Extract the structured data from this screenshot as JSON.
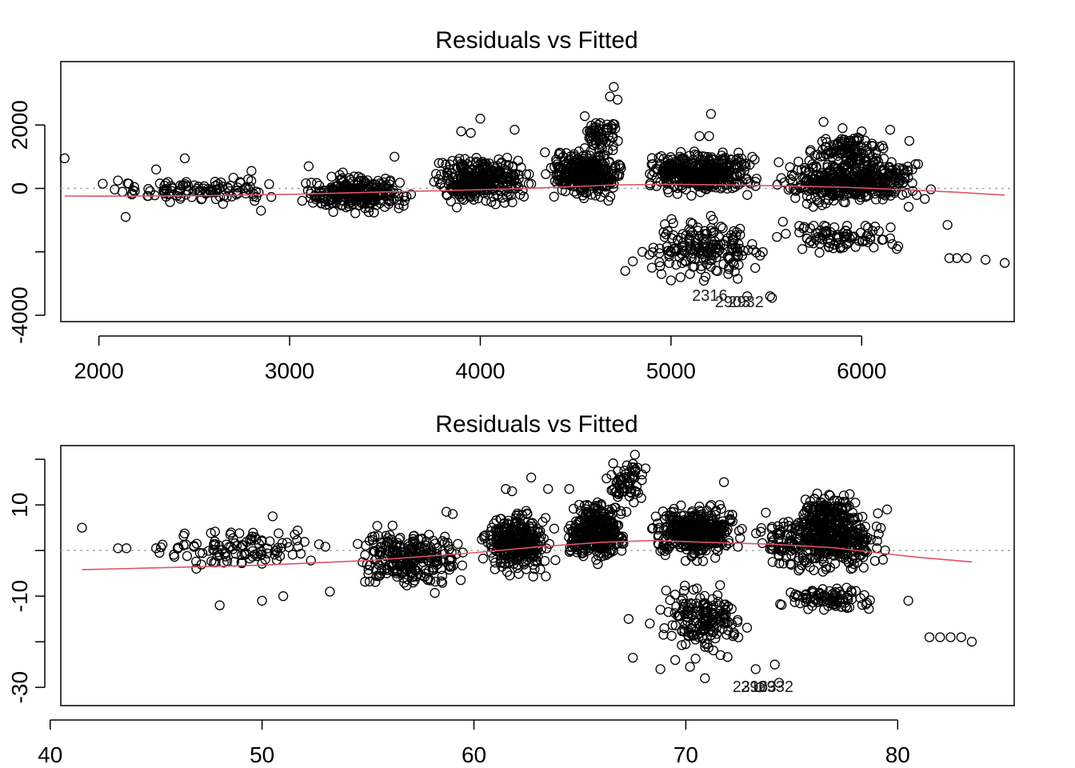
{
  "chart_data": [
    {
      "type": "scatter",
      "title": "Residuals vs Fitted",
      "xlabel": "",
      "ylabel": "",
      "xlim": [
        1800,
        6800
      ],
      "ylim": [
        -4200,
        4000
      ],
      "xticks": [
        2000,
        3000,
        4000,
        5000,
        6000
      ],
      "yticks": [
        -4000,
        -2000,
        0,
        2000
      ],
      "ytick_labels": [
        "-4000",
        "",
        "0",
        "2000"
      ],
      "grid": false,
      "reference_line": 0,
      "colors": {
        "points": "#000000",
        "smooth": "#DF536B",
        "reference": "#AAAAAA"
      },
      "smooth_line": [
        [
          1820,
          -240
        ],
        [
          2000,
          -245
        ],
        [
          2500,
          -230
        ],
        [
          3000,
          -185
        ],
        [
          3500,
          -110
        ],
        [
          3800,
          -70
        ],
        [
          4200,
          -10
        ],
        [
          4500,
          60
        ],
        [
          4700,
          110
        ],
        [
          5000,
          130
        ],
        [
          5300,
          110
        ],
        [
          5600,
          80
        ],
        [
          5900,
          40
        ],
        [
          6100,
          -10
        ],
        [
          6300,
          -60
        ],
        [
          6500,
          -120
        ],
        [
          6750,
          -210
        ]
      ],
      "clusters": [
        {
          "x": [
            2000,
            3000
          ],
          "y": [
            -520,
            420
          ],
          "n": 110
        },
        {
          "x": [
            3000,
            3700
          ],
          "y": [
            -900,
            650
          ],
          "n": 260
        },
        {
          "x": [
            3700,
            4300
          ],
          "y": [
            -650,
            1200
          ],
          "n": 320
        },
        {
          "x": [
            4300,
            4800
          ],
          "y": [
            -500,
            1500
          ],
          "n": 340
        },
        {
          "x": [
            4500,
            4750
          ],
          "y": [
            1000,
            2400
          ],
          "n": 60
        },
        {
          "x": [
            4800,
            5500
          ],
          "y": [
            -300,
            1300
          ],
          "n": 380
        },
        {
          "x": [
            4850,
            5500
          ],
          "y": [
            -3000,
            -700
          ],
          "n": 180
        },
        {
          "x": [
            5500,
            6400
          ],
          "y": [
            -700,
            1200
          ],
          "n": 420
        },
        {
          "x": [
            5700,
            6150
          ],
          "y": [
            400,
            1900
          ],
          "n": 120
        },
        {
          "x": [
            5500,
            6300
          ],
          "y": [
            -2200,
            -900
          ],
          "n": 90
        }
      ],
      "points": [
        [
          1820,
          950
        ],
        [
          2020,
          150
        ],
        [
          2100,
          250
        ],
        [
          2140,
          -900
        ],
        [
          2300,
          600
        ],
        [
          2450,
          950
        ],
        [
          2500,
          100
        ],
        [
          2800,
          550
        ],
        [
          2850,
          -700
        ],
        [
          3100,
          700
        ],
        [
          3550,
          1000
        ],
        [
          3950,
          1750
        ],
        [
          3900,
          1800
        ],
        [
          4000,
          2200
        ],
        [
          4180,
          1850
        ],
        [
          4700,
          3200
        ],
        [
          4680,
          2900
        ],
        [
          4720,
          2800
        ],
        [
          4760,
          -2600
        ],
        [
          4800,
          -2300
        ],
        [
          4850,
          -2000
        ],
        [
          4900,
          -2500
        ],
        [
          4950,
          -2700
        ],
        [
          5000,
          -2900
        ],
        [
          5050,
          -2800
        ],
        [
          5100,
          -2700
        ],
        [
          5150,
          1650
        ],
        [
          5200,
          1650
        ],
        [
          5210,
          2350
        ],
        [
          5300,
          -2700
        ],
        [
          5350,
          -2850
        ],
        [
          5400,
          -3400
        ],
        [
          5520,
          -3400
        ],
        [
          5530,
          -3450
        ],
        [
          5800,
          2100
        ],
        [
          5900,
          1900
        ],
        [
          6000,
          1800
        ],
        [
          6150,
          1850
        ],
        [
          6250,
          1500
        ],
        [
          6450,
          -1150
        ],
        [
          6460,
          -2200
        ],
        [
          6500,
          -2200
        ],
        [
          6550,
          -2200
        ],
        [
          6650,
          -2250
        ],
        [
          6750,
          -2350
        ]
      ],
      "point_labels": [
        {
          "text": "2316",
          "x": 5110,
          "y": -3550
        },
        {
          "text": "2903",
          "x": 5230,
          "y": -3750
        },
        {
          "text": "2932",
          "x": 5300,
          "y": -3750
        }
      ]
    },
    {
      "type": "scatter",
      "title": "Residuals vs Fitted",
      "xlabel": "",
      "ylabel": "",
      "xlim": [
        40.5,
        85.5
      ],
      "ylim": [
        -34,
        23
      ],
      "xticks": [
        40,
        50,
        60,
        70,
        80
      ],
      "yticks": [
        -30,
        -20,
        -10,
        0,
        10,
        20
      ],
      "ytick_labels": [
        "-30",
        "",
        "-10",
        "",
        "10",
        ""
      ],
      "grid": false,
      "reference_line": 0,
      "colors": {
        "points": "#000000",
        "smooth": "#DF536B",
        "reference": "#AAAAAA"
      },
      "smooth_line": [
        [
          41.5,
          -4.2
        ],
        [
          45,
          -3.8
        ],
        [
          50,
          -3.2
        ],
        [
          55,
          -2.2
        ],
        [
          60,
          -0.5
        ],
        [
          63,
          0.8
        ],
        [
          66,
          1.8
        ],
        [
          68.5,
          2.2
        ],
        [
          71,
          1.8
        ],
        [
          74,
          1.4
        ],
        [
          77,
          0.6
        ],
        [
          79,
          -0.5
        ],
        [
          81,
          -1.5
        ],
        [
          83.5,
          -2.5
        ]
      ],
      "clusters": [
        {
          "x": [
            44,
            54
          ],
          "y": [
            -5,
            6
          ],
          "n": 110
        },
        {
          "x": [
            54,
            60
          ],
          "y": [
            -10,
            7
          ],
          "n": 260
        },
        {
          "x": [
            60,
            64
          ],
          "y": [
            -7,
            10
          ],
          "n": 320
        },
        {
          "x": [
            64,
            67.5
          ],
          "y": [
            -4,
            12
          ],
          "n": 340
        },
        {
          "x": [
            66,
            68.5
          ],
          "y": [
            9,
            20
          ],
          "n": 60
        },
        {
          "x": [
            68,
            73
          ],
          "y": [
            -3,
            11
          ],
          "n": 380
        },
        {
          "x": [
            68.5,
            73
          ],
          "y": [
            -25,
            -6
          ],
          "n": 180
        },
        {
          "x": [
            73,
            80
          ],
          "y": [
            -6,
            10
          ],
          "n": 420
        },
        {
          "x": [
            75,
            78.5
          ],
          "y": [
            3,
            14
          ],
          "n": 120
        },
        {
          "x": [
            74,
            79.5
          ],
          "y": [
            -14,
            -7
          ],
          "n": 90
        }
      ],
      "points": [
        [
          41.5,
          5
        ],
        [
          43.2,
          0.5
        ],
        [
          43.6,
          0.5
        ],
        [
          45,
          0.5
        ],
        [
          46.9,
          -4
        ],
        [
          48,
          -12
        ],
        [
          48.5,
          3.5
        ],
        [
          50,
          -11
        ],
        [
          50.5,
          7.5
        ],
        [
          51,
          -10
        ],
        [
          53.2,
          -9
        ],
        [
          58.7,
          8.5
        ],
        [
          59,
          8
        ],
        [
          61.5,
          13.5
        ],
        [
          61.8,
          13
        ],
        [
          62.7,
          16
        ],
        [
          63.5,
          13.5
        ],
        [
          64.5,
          13.5
        ],
        [
          67.6,
          21
        ],
        [
          67.5,
          19
        ],
        [
          68.1,
          18
        ],
        [
          67.3,
          -15
        ],
        [
          67.5,
          -23.5
        ],
        [
          68.3,
          -16
        ],
        [
          68.8,
          -26
        ],
        [
          69.5,
          -24
        ],
        [
          70.2,
          -25.5
        ],
        [
          70.9,
          -28
        ],
        [
          71.2,
          10
        ],
        [
          71.6,
          10
        ],
        [
          71.8,
          15
        ],
        [
          72,
          -17.5
        ],
        [
          73.3,
          -26
        ],
        [
          73.5,
          -30
        ],
        [
          74.2,
          -25
        ],
        [
          74.4,
          -29
        ],
        [
          76.2,
          12.5
        ],
        [
          77,
          11
        ],
        [
          78,
          10.5
        ],
        [
          79.5,
          9
        ],
        [
          80.5,
          -11
        ],
        [
          81.5,
          -19
        ],
        [
          82,
          -19
        ],
        [
          82.5,
          -19
        ],
        [
          83,
          -19
        ],
        [
          83.5,
          -20
        ]
      ],
      "point_labels": [
        {
          "text": "2316",
          "x": 72.2,
          "y": -31
        },
        {
          "text": "2903",
          "x": 72.6,
          "y": -31
        },
        {
          "text": "2932",
          "x": 73.4,
          "y": -31
        }
      ]
    }
  ]
}
